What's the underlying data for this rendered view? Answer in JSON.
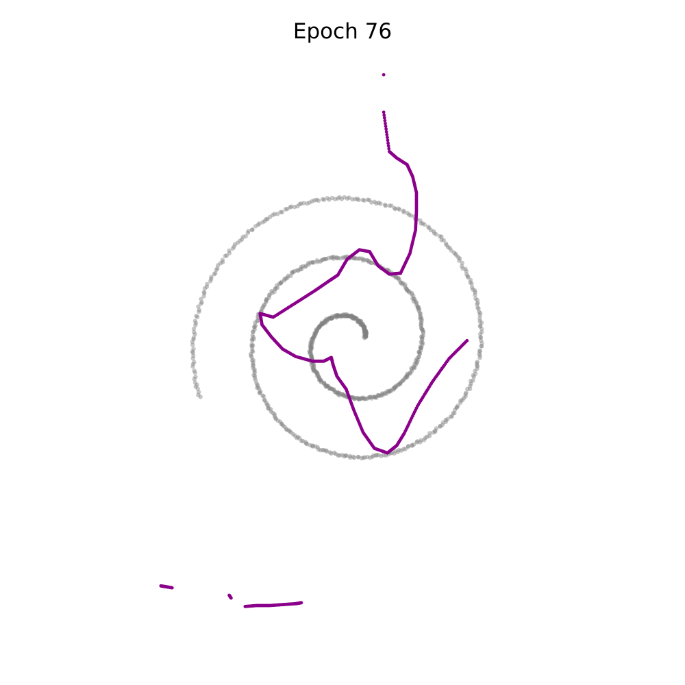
{
  "chart_data": {
    "type": "scatter",
    "title": "Epoch 76",
    "xlabel": "",
    "ylabel": "",
    "axes_visible": false,
    "grid": false,
    "legend": "none",
    "xlim": [
      -3.0,
      3.0
    ],
    "ylim": [
      -3.0,
      3.0
    ],
    "colors": {
      "target": "#808080",
      "generated": "#8b008b"
    },
    "series": [
      {
        "role": "target",
        "spiral": {
          "center": [
            0.1,
            0.0
          ],
          "inner_radius": 0.15,
          "outer_radius": 1.73,
          "start_angle_deg": 20,
          "turns": 2.5,
          "n_points": 900,
          "jitter": 0.012
        },
        "x": [],
        "y": []
      },
      {
        "role": "generated",
        "x": [
          0.44,
          0.5,
          0.58,
          0.69,
          0.75,
          0.79,
          0.79,
          0.78,
          0.72,
          0.62,
          0.5,
          0.38,
          0.29,
          0.18,
          0.05,
          -0.05,
          -0.14,
          -0.3,
          -0.52,
          -0.74,
          -0.88,
          -0.86,
          -0.76,
          -0.64,
          -0.5,
          -0.32,
          -0.2,
          -0.12,
          -0.1,
          -0.06,
          0.04,
          0.12,
          0.22,
          0.34,
          0.48,
          0.58,
          0.66,
          0.8,
          0.96,
          1.14,
          1.33
        ],
        "y": [
          2.46,
          2.04,
          1.97,
          1.9,
          1.77,
          1.6,
          1.4,
          1.2,
          0.95,
          0.74,
          0.73,
          0.82,
          0.97,
          0.99,
          0.89,
          0.72,
          0.66,
          0.55,
          0.41,
          0.27,
          0.31,
          0.19,
          0.06,
          -0.07,
          -0.15,
          -0.2,
          -0.2,
          -0.16,
          -0.24,
          -0.36,
          -0.5,
          -0.72,
          -0.96,
          -1.13,
          -1.18,
          -1.1,
          -0.97,
          -0.68,
          -0.42,
          -0.17,
          0.02
        ]
      },
      {
        "role": "generated",
        "x": [
          -1.94,
          -1.88,
          -1.82
        ],
        "y": [
          -2.6,
          -2.61,
          -2.62
        ]
      },
      {
        "role": "generated",
        "x": [
          -1.21,
          -1.19
        ],
        "y": [
          -2.7,
          -2.73
        ]
      },
      {
        "role": "generated",
        "x": [
          -1.04,
          -0.92,
          -0.78,
          -0.64,
          -0.5,
          -0.44
        ],
        "y": [
          -2.82,
          -2.81,
          -2.81,
          -2.8,
          -2.79,
          -2.78
        ]
      },
      {
        "role": "generated",
        "x": [
          0.44
        ],
        "y": [
          2.86
        ]
      }
    ]
  }
}
